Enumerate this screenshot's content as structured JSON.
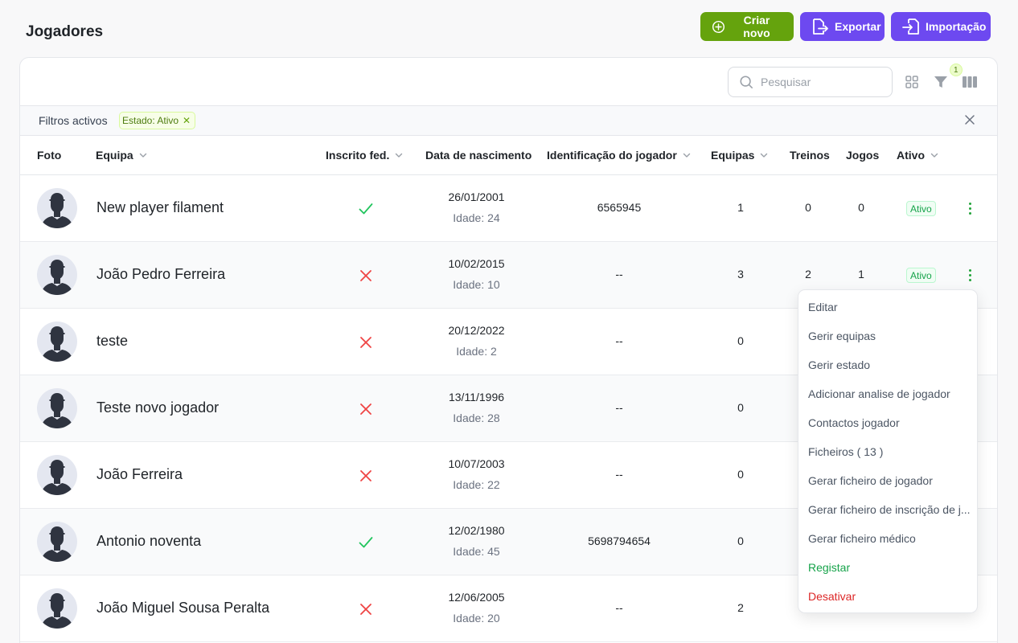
{
  "header": {
    "title": "Jogadores",
    "create_label": "Criar novo",
    "export_label": "Exportar",
    "import_label": "Importação"
  },
  "toolbar": {
    "search_placeholder": "Pesquisar",
    "filter_count": "1"
  },
  "active_filters": {
    "label": "Filtros activos",
    "chips": [
      "Estado: Ativo"
    ]
  },
  "columns": {
    "photo": "Foto",
    "team": "Equipa",
    "fed": "Inscrito fed.",
    "dob": "Data de nascimento",
    "player_id": "Identificação do jogador",
    "teams": "Equipas",
    "trainings": "Treinos",
    "games": "Jogos",
    "active": "Ativo"
  },
  "rows": [
    {
      "name": "New player filament",
      "fed": true,
      "dob": "26/01/2001",
      "age": "Idade: 24",
      "pid": "6565945",
      "teams": "1",
      "trainings": "0",
      "games": "0",
      "status": "Ativo"
    },
    {
      "name": "João Pedro Ferreira",
      "fed": false,
      "dob": "10/02/2015",
      "age": "Idade: 10",
      "pid": "--",
      "teams": "3",
      "trainings": "2",
      "games": "1",
      "status": "Ativo"
    },
    {
      "name": "teste",
      "fed": false,
      "dob": "20/12/2022",
      "age": "Idade: 2",
      "pid": "--",
      "teams": "0",
      "trainings": "",
      "games": "",
      "status": ""
    },
    {
      "name": "Teste novo jogador",
      "fed": false,
      "dob": "13/11/1996",
      "age": "Idade: 28",
      "pid": "--",
      "teams": "0",
      "trainings": "",
      "games": "",
      "status": ""
    },
    {
      "name": "João Ferreira",
      "fed": false,
      "dob": "10/07/2003",
      "age": "Idade: 22",
      "pid": "--",
      "teams": "0",
      "trainings": "",
      "games": "",
      "status": ""
    },
    {
      "name": "Antonio noventa",
      "fed": true,
      "dob": "12/02/1980",
      "age": "Idade: 45",
      "pid": "5698794654",
      "teams": "0",
      "trainings": "",
      "games": "",
      "status": ""
    },
    {
      "name": "João Miguel Sousa Peralta",
      "fed": false,
      "dob": "12/06/2005",
      "age": "Idade: 20",
      "pid": "--",
      "teams": "2",
      "trainings": "",
      "games": "",
      "status": ""
    }
  ],
  "context_menu": {
    "items": [
      {
        "label": "Editar",
        "tone": "default"
      },
      {
        "label": "Gerir equipas",
        "tone": "default"
      },
      {
        "label": "Gerir estado",
        "tone": "default"
      },
      {
        "label": "Adicionar analise de jogador",
        "tone": "default"
      },
      {
        "label": "Contactos jogador",
        "tone": "default"
      },
      {
        "label": "Ficheiros ( 13 )",
        "tone": "default"
      },
      {
        "label": "Gerar ficheiro de jogador",
        "tone": "default"
      },
      {
        "label": "Gerar ficheiro de inscrição de j...",
        "tone": "default"
      },
      {
        "label": "Gerar ficheiro médico",
        "tone": "default"
      },
      {
        "label": "Registar",
        "tone": "green"
      },
      {
        "label": "Desativar",
        "tone": "red"
      }
    ]
  },
  "colors": {
    "create_button": "#65a30d",
    "purple_button": "#6d49f0",
    "check": "#22c55e",
    "cross": "#ef4444",
    "ativo": "#16a34a"
  }
}
